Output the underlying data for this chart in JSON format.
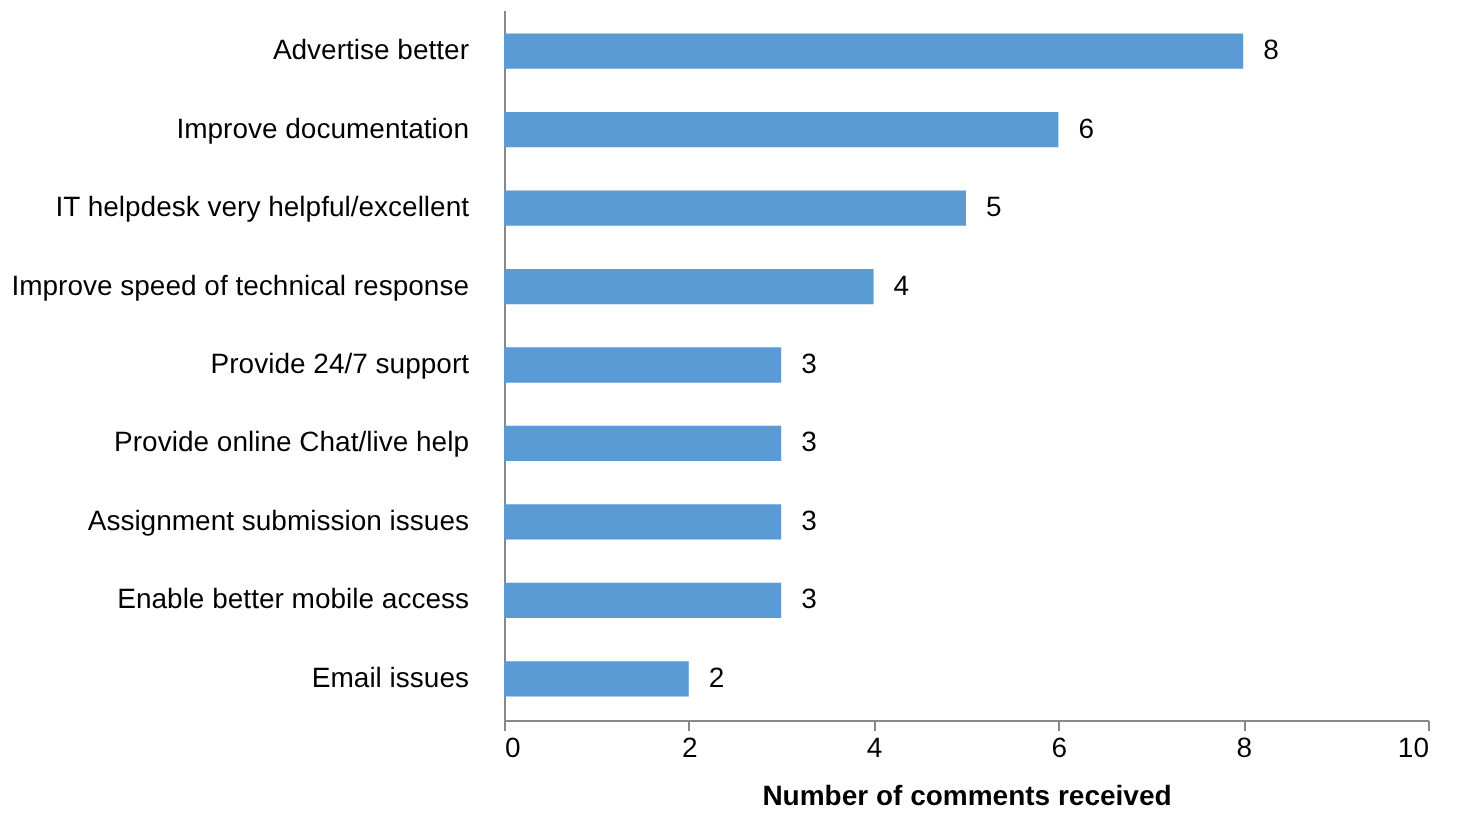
{
  "chart_data": {
    "type": "bar",
    "orientation": "horizontal",
    "xlabel": "Number of comments received",
    "categories": [
      "Advertise better",
      "Improve documentation",
      "IT helpdesk very helpful/excellent",
      "Improve speed of technical response",
      "Provide 24/7 support",
      "Provide online Chat/live help",
      "Assignment submission issues",
      "Enable better mobile access",
      "Email issues"
    ],
    "values": [
      8,
      6,
      5,
      4,
      3,
      3,
      3,
      3,
      2
    ],
    "color": "#5b9bd5",
    "xlim": [
      0,
      10
    ],
    "xticks": [
      0,
      2,
      4,
      6,
      8,
      10
    ],
    "grid": false,
    "data_labels": true
  }
}
